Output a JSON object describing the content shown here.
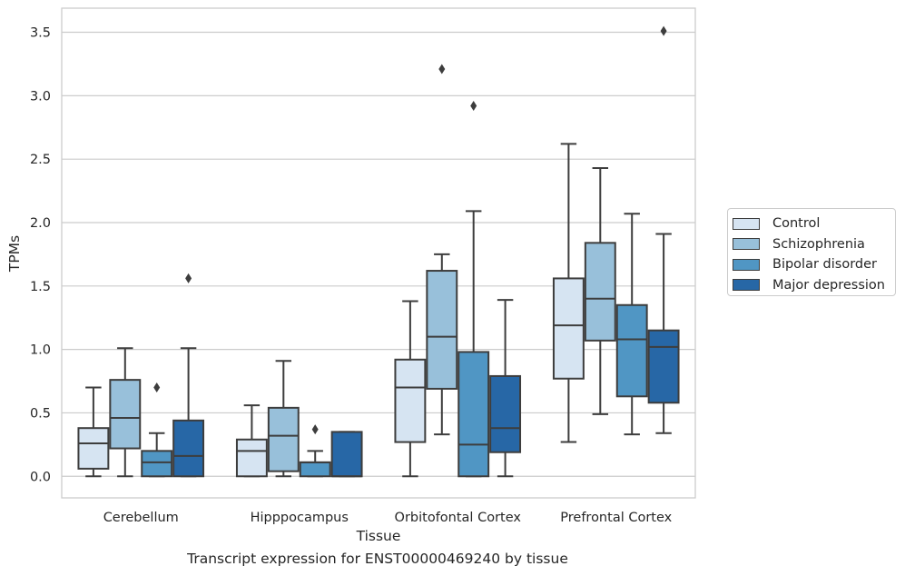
{
  "chart_data": {
    "type": "box",
    "title": "",
    "caption": "Transcript expression for ENST00000469240 by tissue",
    "xlabel": "Tissue",
    "ylabel": "TPMs",
    "ylim": [
      -0.17,
      3.69
    ],
    "yticks": [
      "0.0",
      "0.5",
      "1.0",
      "1.5",
      "2.0",
      "2.5",
      "3.0",
      "3.5"
    ],
    "ytick_values": [
      0.0,
      0.5,
      1.0,
      1.5,
      2.0,
      2.5,
      3.0,
      3.5
    ],
    "grid": "horizontal",
    "legend_position": "outside-right",
    "categories": [
      "Cerebellum",
      "Hipppocampus",
      "Orbitofontal Cortex",
      "Prefrontal Cortex"
    ],
    "series": [
      {
        "name": "Control",
        "color": "#d6e4f2",
        "boxes": [
          {
            "whislo": 0.0,
            "q1": 0.06,
            "med": 0.26,
            "q3": 0.38,
            "whishi": 0.7,
            "fliers": []
          },
          {
            "whislo": 0.0,
            "q1": 0.0,
            "med": 0.2,
            "q3": 0.29,
            "whishi": 0.56,
            "fliers": []
          },
          {
            "whislo": 0.0,
            "q1": 0.27,
            "med": 0.7,
            "q3": 0.92,
            "whishi": 1.38,
            "fliers": []
          },
          {
            "whislo": 0.27,
            "q1": 0.77,
            "med": 1.19,
            "q3": 1.56,
            "whishi": 2.62,
            "fliers": []
          }
        ]
      },
      {
        "name": "Schizophrenia",
        "color": "#98c0da",
        "boxes": [
          {
            "whislo": 0.0,
            "q1": 0.22,
            "med": 0.46,
            "q3": 0.76,
            "whishi": 1.01,
            "fliers": []
          },
          {
            "whislo": 0.0,
            "q1": 0.04,
            "med": 0.32,
            "q3": 0.54,
            "whishi": 0.91,
            "fliers": []
          },
          {
            "whislo": 0.33,
            "q1": 0.69,
            "med": 1.1,
            "q3": 1.62,
            "whishi": 1.75,
            "fliers": [
              3.21
            ]
          },
          {
            "whislo": 0.49,
            "q1": 1.07,
            "med": 1.4,
            "q3": 1.84,
            "whishi": 2.43,
            "fliers": []
          }
        ]
      },
      {
        "name": "Bipolar disorder",
        "color": "#5096c4",
        "boxes": [
          {
            "whislo": 0.0,
            "q1": 0.0,
            "med": 0.11,
            "q3": 0.2,
            "whishi": 0.34,
            "fliers": [
              0.7
            ]
          },
          {
            "whislo": 0.0,
            "q1": 0.0,
            "med": 0.11,
            "q3": 0.11,
            "whishi": 0.2,
            "fliers": [
              0.37
            ]
          },
          {
            "whislo": 0.0,
            "q1": 0.0,
            "med": 0.25,
            "q3": 0.98,
            "whishi": 2.09,
            "fliers": [
              2.92
            ]
          },
          {
            "whislo": 0.33,
            "q1": 0.63,
            "med": 1.08,
            "q3": 1.35,
            "whishi": 2.07,
            "fliers": []
          }
        ]
      },
      {
        "name": "Major depression",
        "color": "#2767a6",
        "boxes": [
          {
            "whislo": 0.0,
            "q1": 0.0,
            "med": 0.16,
            "q3": 0.44,
            "whishi": 1.01,
            "fliers": [
              1.56
            ]
          },
          {
            "whislo": 0.0,
            "q1": 0.0,
            "med": 0.0,
            "q3": 0.35,
            "whishi": 0.35,
            "fliers": []
          },
          {
            "whislo": 0.0,
            "q1": 0.19,
            "med": 0.38,
            "q3": 0.79,
            "whishi": 1.39,
            "fliers": []
          },
          {
            "whislo": 0.34,
            "q1": 0.58,
            "med": 1.02,
            "q3": 1.15,
            "whishi": 1.91,
            "fliers": [
              3.51
            ]
          }
        ]
      }
    ]
  }
}
